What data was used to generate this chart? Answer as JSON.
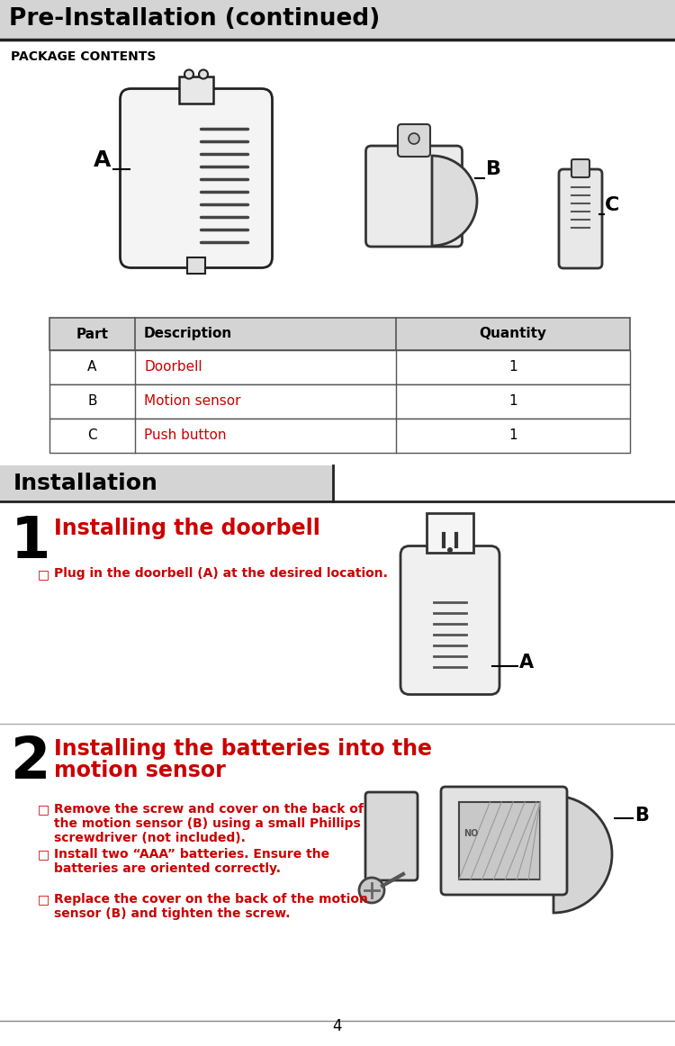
{
  "title": "Pre-Installation (continued)",
  "title_bg": "#d4d4d4",
  "title_color": "#000000",
  "section_label": "PACKAGE CONTENTS",
  "table_header": [
    "Part",
    "Description",
    "Quantity"
  ],
  "table_rows": [
    [
      "A",
      "Doorbell",
      "1"
    ],
    [
      "B",
      "Motion sensor",
      "1"
    ],
    [
      "C",
      "Push button",
      "1"
    ]
  ],
  "table_desc_color": "#cc0000",
  "install_section": "Installation",
  "install_bg": "#d4d4d4",
  "step1_num": "1",
  "step1_title": "Installing the doorbell",
  "step1_title_color": "#cc0000",
  "step1_bullets": [
    "Plug in the doorbell (A) at the desired location."
  ],
  "step2_num": "2",
  "step2_title_line1": "Installing the batteries into the",
  "step2_title_line2": "motion sensor",
  "step2_title_color": "#cc0000",
  "step2_bullets": [
    "Remove the screw and cover on the back of\nthe motion sensor (B) using a small Phillips\nscrewdriver (not included).",
    "Install two “AAA” batteries. Ensure the\nbatteries are oriented correctly.",
    "Replace the cover on the back of the motion\nsensor (B) and tighten the screw."
  ],
  "bullet_color": "#cc0000",
  "bullet_text_color": "#cc0000",
  "page_num": "4",
  "bg_color": "#ffffff",
  "line_color": "#000000",
  "table_header_bg": "#d4d4d4",
  "table_row_bg": "#ffffff"
}
